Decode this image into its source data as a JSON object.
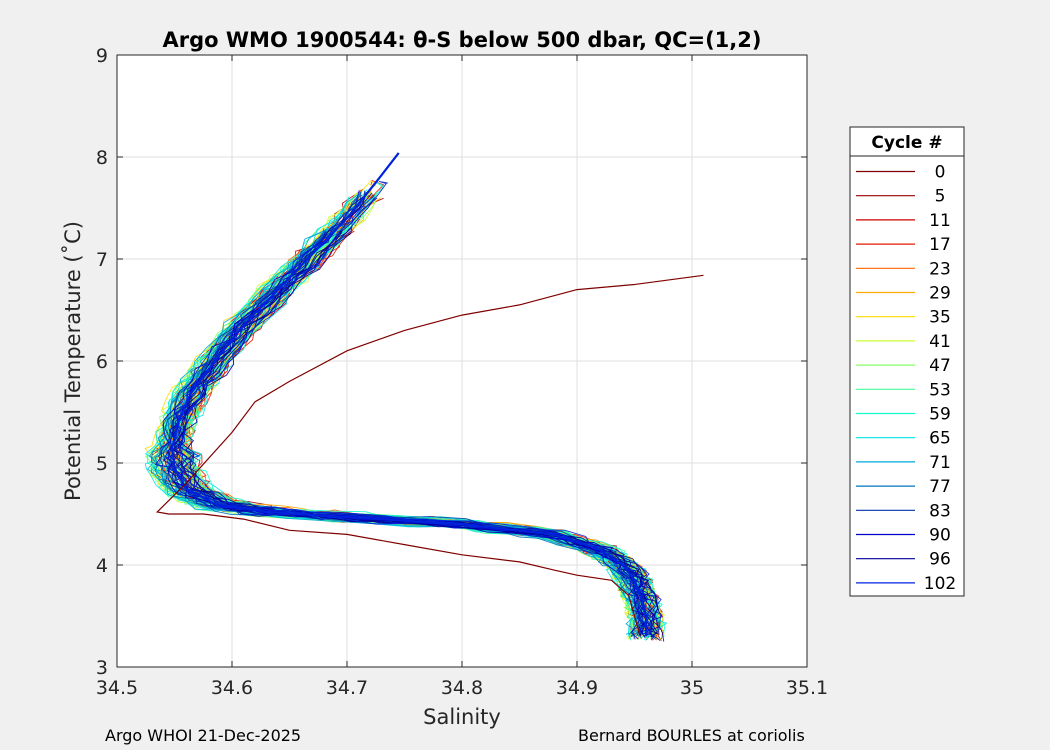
{
  "chart_data": {
    "type": "line",
    "title": "Argo WMO 1900544: θ-S below 500 dbar,  QC=(1,2)",
    "xlabel": "Salinity",
    "ylabel": "Potential Temperature (˚C)",
    "xlim": [
      34.5,
      35.1
    ],
    "ylim": [
      3,
      9
    ],
    "xticks": [
      "34.5",
      "34.6",
      "34.7",
      "34.8",
      "34.9",
      "35",
      "35.1"
    ],
    "yticks": [
      "3",
      "4",
      "5",
      "6",
      "7",
      "8",
      "9"
    ],
    "grid": true,
    "legend": {
      "title": "Cycle #",
      "placement": "right-outside",
      "entries": [
        "0",
        "5",
        "11",
        "17",
        "23",
        "29",
        "35",
        "41",
        "47",
        "53",
        "59",
        "65",
        "71",
        "77",
        "83",
        "90",
        "96",
        "102"
      ],
      "colors": [
        "#800000",
        "#990000",
        "#cc0000",
        "#e61a00",
        "#ff6600",
        "#ffaa00",
        "#ffdd00",
        "#ccff33",
        "#88ff66",
        "#44ff99",
        "#11ffcc",
        "#00e6e6",
        "#00aadd",
        "#0077bb",
        "#0033aa",
        "#0000cc",
        "#000099",
        "#0022dd"
      ]
    },
    "reference_profile": {
      "s": [
        34.96,
        34.96,
        34.955,
        34.95,
        34.94,
        34.92,
        34.88,
        34.8,
        34.7,
        34.63,
        34.585,
        34.56,
        34.55,
        34.548,
        34.553,
        34.565,
        34.585,
        34.61,
        34.64,
        34.67,
        34.7,
        34.725
      ],
      "t": [
        3.3,
        3.5,
        3.7,
        3.85,
        4.0,
        4.15,
        4.3,
        4.4,
        4.47,
        4.52,
        4.6,
        4.75,
        4.95,
        5.15,
        5.4,
        5.7,
        6.0,
        6.35,
        6.7,
        7.05,
        7.4,
        7.75
      ]
    },
    "cycle0_profile": {
      "s": [
        34.955,
        34.95,
        34.945,
        34.93,
        34.9,
        34.88,
        34.85,
        34.8,
        34.75,
        34.7,
        34.65,
        34.61,
        34.575,
        34.545,
        34.535,
        34.56,
        34.6,
        34.62,
        34.65,
        34.7,
        34.75,
        34.8,
        34.85,
        34.9,
        34.95,
        35.01
      ],
      "t": [
        3.3,
        3.5,
        3.7,
        3.85,
        3.9,
        3.95,
        4.03,
        4.1,
        4.2,
        4.3,
        4.34,
        4.45,
        4.5,
        4.5,
        4.52,
        4.8,
        5.3,
        5.6,
        5.8,
        6.1,
        6.3,
        6.45,
        6.55,
        6.7,
        6.75,
        6.84
      ]
    }
  },
  "footer": {
    "left": "Argo WHOI 21-Dec-2025",
    "right": "Bernard BOURLES at coriolis"
  }
}
